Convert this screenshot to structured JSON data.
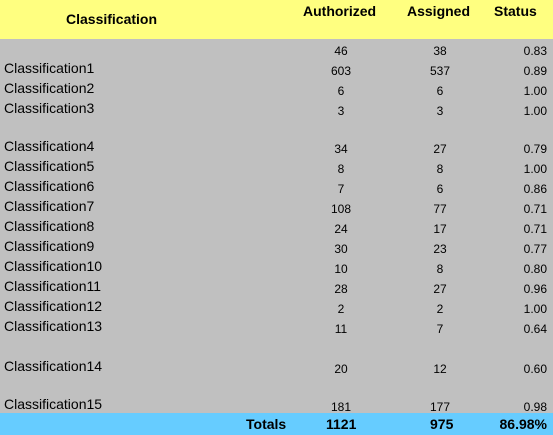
{
  "header": {
    "classification": "Classification",
    "authorized": "Authorized",
    "assigned": "Assigned",
    "status": "Status"
  },
  "rows": [
    {
      "name": "",
      "authorized": "46",
      "assigned": "38",
      "status": "0.83"
    },
    {
      "name": "Classification1",
      "authorized": "603",
      "assigned": "537",
      "status": "0.89"
    },
    {
      "name": "Classification2",
      "authorized": "6",
      "assigned": "6",
      "status": "1.00"
    },
    {
      "name": "Classification3",
      "authorized": "3",
      "assigned": "3",
      "status": "1.00"
    },
    {
      "name": "Classification4",
      "authorized": "34",
      "assigned": "27",
      "status": "0.79"
    },
    {
      "name": "Classification5",
      "authorized": "8",
      "assigned": "8",
      "status": "1.00"
    },
    {
      "name": "Classification6",
      "authorized": "7",
      "assigned": "6",
      "status": "0.86"
    },
    {
      "name": "Classification7",
      "authorized": "108",
      "assigned": "77",
      "status": "0.71"
    },
    {
      "name": "Classification8",
      "authorized": "24",
      "assigned": "17",
      "status": "0.71"
    },
    {
      "name": "Classification9",
      "authorized": "30",
      "assigned": "23",
      "status": "0.77"
    },
    {
      "name": "Classification10",
      "authorized": "10",
      "assigned": "8",
      "status": "0.80"
    },
    {
      "name": "Classification11",
      "authorized": "28",
      "assigned": "27",
      "status": "0.96"
    },
    {
      "name": "Classification12",
      "authorized": "2",
      "assigned": "2",
      "status": "1.00"
    },
    {
      "name": "Classification13",
      "authorized": "11",
      "assigned": "7",
      "status": "0.64"
    },
    {
      "name": "Classification14",
      "authorized": "20",
      "assigned": "12",
      "status": "0.60"
    },
    {
      "name": "Classification15",
      "authorized": "181",
      "assigned": "177",
      "status": "0.98"
    }
  ],
  "totals": {
    "label": "Totals",
    "authorized": "1121",
    "assigned": "975",
    "status": "86.98%"
  }
}
